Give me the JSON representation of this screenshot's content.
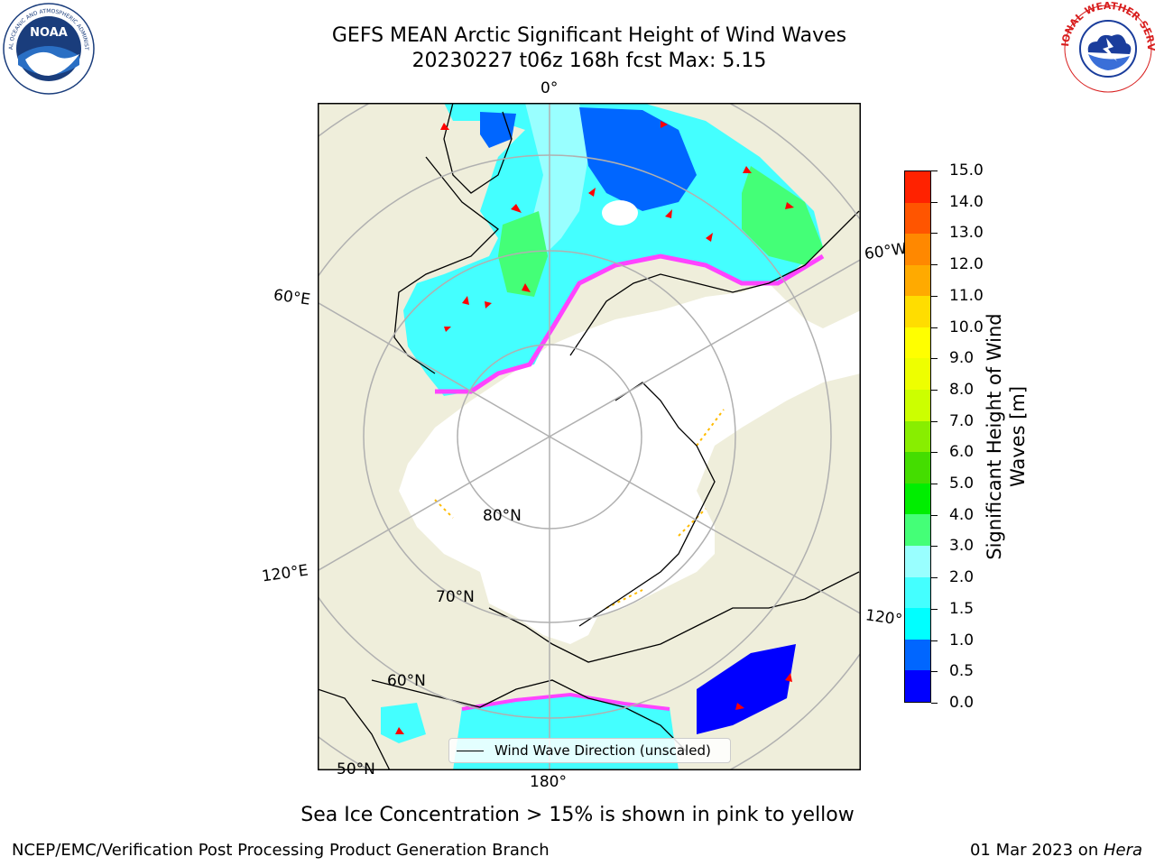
{
  "header": {
    "title_line1": "GEFS MEAN Arctic Significant Height of Wind Waves",
    "title_line2": "20230227 t06z 168h fcst   Max: 5.15"
  },
  "logos": {
    "left": {
      "icon": "noaa-logo",
      "text": "NOAA"
    },
    "right": {
      "icon": "nws-logo"
    }
  },
  "map": {
    "projection": "north-polar-stereographic",
    "colors": {
      "land": "#efeedb",
      "ocean_ice": "#ffffff",
      "graticule": "#b0b0b0",
      "coastline": "#000000",
      "wind_arrow": "#ff0000",
      "ice_edge_pink": "#ff44ff",
      "ice_edge_yellow": "#ffbb00"
    },
    "meridian_labels": {
      "lon_0": "0°",
      "lon_60w": "60°W",
      "lon_60e": "60°E",
      "lon_120e": "120°E",
      "lon_120w": "120°",
      "lon_180": "180°"
    },
    "parallel_labels": {
      "lat_80": "80°N",
      "lat_70": "70°N",
      "lat_60": "60°N",
      "lat_50": "50°N"
    },
    "legend_label": "Wind Wave Direction (unscaled)"
  },
  "colorbar": {
    "title": "Significant Height of Wind Waves [m]",
    "title_line1": "Significant Height of Wind",
    "title_line2": "Waves [m]",
    "ticks": [
      "0.0",
      "0.5",
      "1.0",
      "1.5",
      "2.0",
      "3.0",
      "4.0",
      "5.0",
      "6.0",
      "7.0",
      "8.0",
      "9.0",
      "10.0",
      "11.0",
      "12.0",
      "13.0",
      "14.0",
      "15.0"
    ],
    "colors": [
      "#0000ff",
      "#0066ff",
      "#00ffff",
      "#44ffff",
      "#99ffff",
      "#44ff77",
      "#00ee00",
      "#44dd00",
      "#88ee00",
      "#ccff00",
      "#eeff00",
      "#ffff00",
      "#ffdd00",
      "#ffaa00",
      "#ff8800",
      "#ff5500",
      "#ff2200"
    ]
  },
  "caption": "Sea Ice Concentration > 15% is shown in pink to yellow",
  "footer": {
    "left": "NCEP/EMC/Verification Post Processing Product Generation Branch",
    "right_date": "01 Mar 2023 on ",
    "right_machine": "Hera"
  }
}
